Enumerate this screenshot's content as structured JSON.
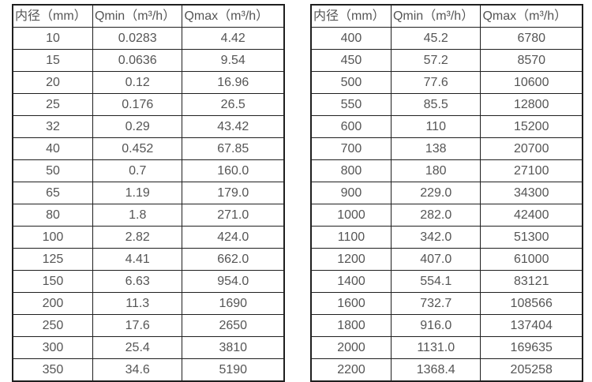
{
  "colors": {
    "text": "#555555",
    "border": "#1f1f1f",
    "background": "#ffffff"
  },
  "chart_data": [
    {
      "type": "table",
      "name": "flow-range-table-small-diameters",
      "columns": [
        "内径（mm）",
        "Qmin（m³/h）",
        "Qmax（m³/h）"
      ],
      "rows": [
        [
          "10",
          "0.0283",
          "4.42"
        ],
        [
          "15",
          "0.0636",
          "9.54"
        ],
        [
          "20",
          "0.12",
          "16.96"
        ],
        [
          "25",
          "0.176",
          "26.5"
        ],
        [
          "32",
          "0.29",
          "43.42"
        ],
        [
          "40",
          "0.452",
          "67.85"
        ],
        [
          "50",
          "0.7",
          "160.0"
        ],
        [
          "65",
          "1.19",
          "179.0"
        ],
        [
          "80",
          "1.8",
          "271.0"
        ],
        [
          "100",
          "2.82",
          "424.0"
        ],
        [
          "125",
          "4.41",
          "662.0"
        ],
        [
          "150",
          "6.63",
          "954.0"
        ],
        [
          "200",
          "11.3",
          "1690"
        ],
        [
          "250",
          "17.6",
          "2650"
        ],
        [
          "300",
          "25.4",
          "3810"
        ],
        [
          "350",
          "34.6",
          "5190"
        ]
      ]
    },
    {
      "type": "table",
      "name": "flow-range-table-large-diameters",
      "columns": [
        "内径（mm）",
        "Qmin（m³/h）",
        "Qmax（m³/h）"
      ],
      "rows": [
        [
          "400",
          "45.2",
          "6780"
        ],
        [
          "450",
          "57.2",
          "8570"
        ],
        [
          "500",
          "77.6",
          "10600"
        ],
        [
          "550",
          "85.5",
          "12800"
        ],
        [
          "600",
          "110",
          "15200"
        ],
        [
          "700",
          "138",
          "20700"
        ],
        [
          "800",
          "180",
          "27100"
        ],
        [
          "900",
          "229.0",
          "34300"
        ],
        [
          "1000",
          "282.0",
          "42400"
        ],
        [
          "1100",
          "342.0",
          "51300"
        ],
        [
          "1200",
          "407.0",
          "61000"
        ],
        [
          "1400",
          "554.1",
          "83121"
        ],
        [
          "1600",
          "732.7",
          "108566"
        ],
        [
          "1800",
          "916.0",
          "137404"
        ],
        [
          "2000",
          "1131.0",
          "169635"
        ],
        [
          "2200",
          "1368.4",
          "205258"
        ]
      ]
    }
  ]
}
